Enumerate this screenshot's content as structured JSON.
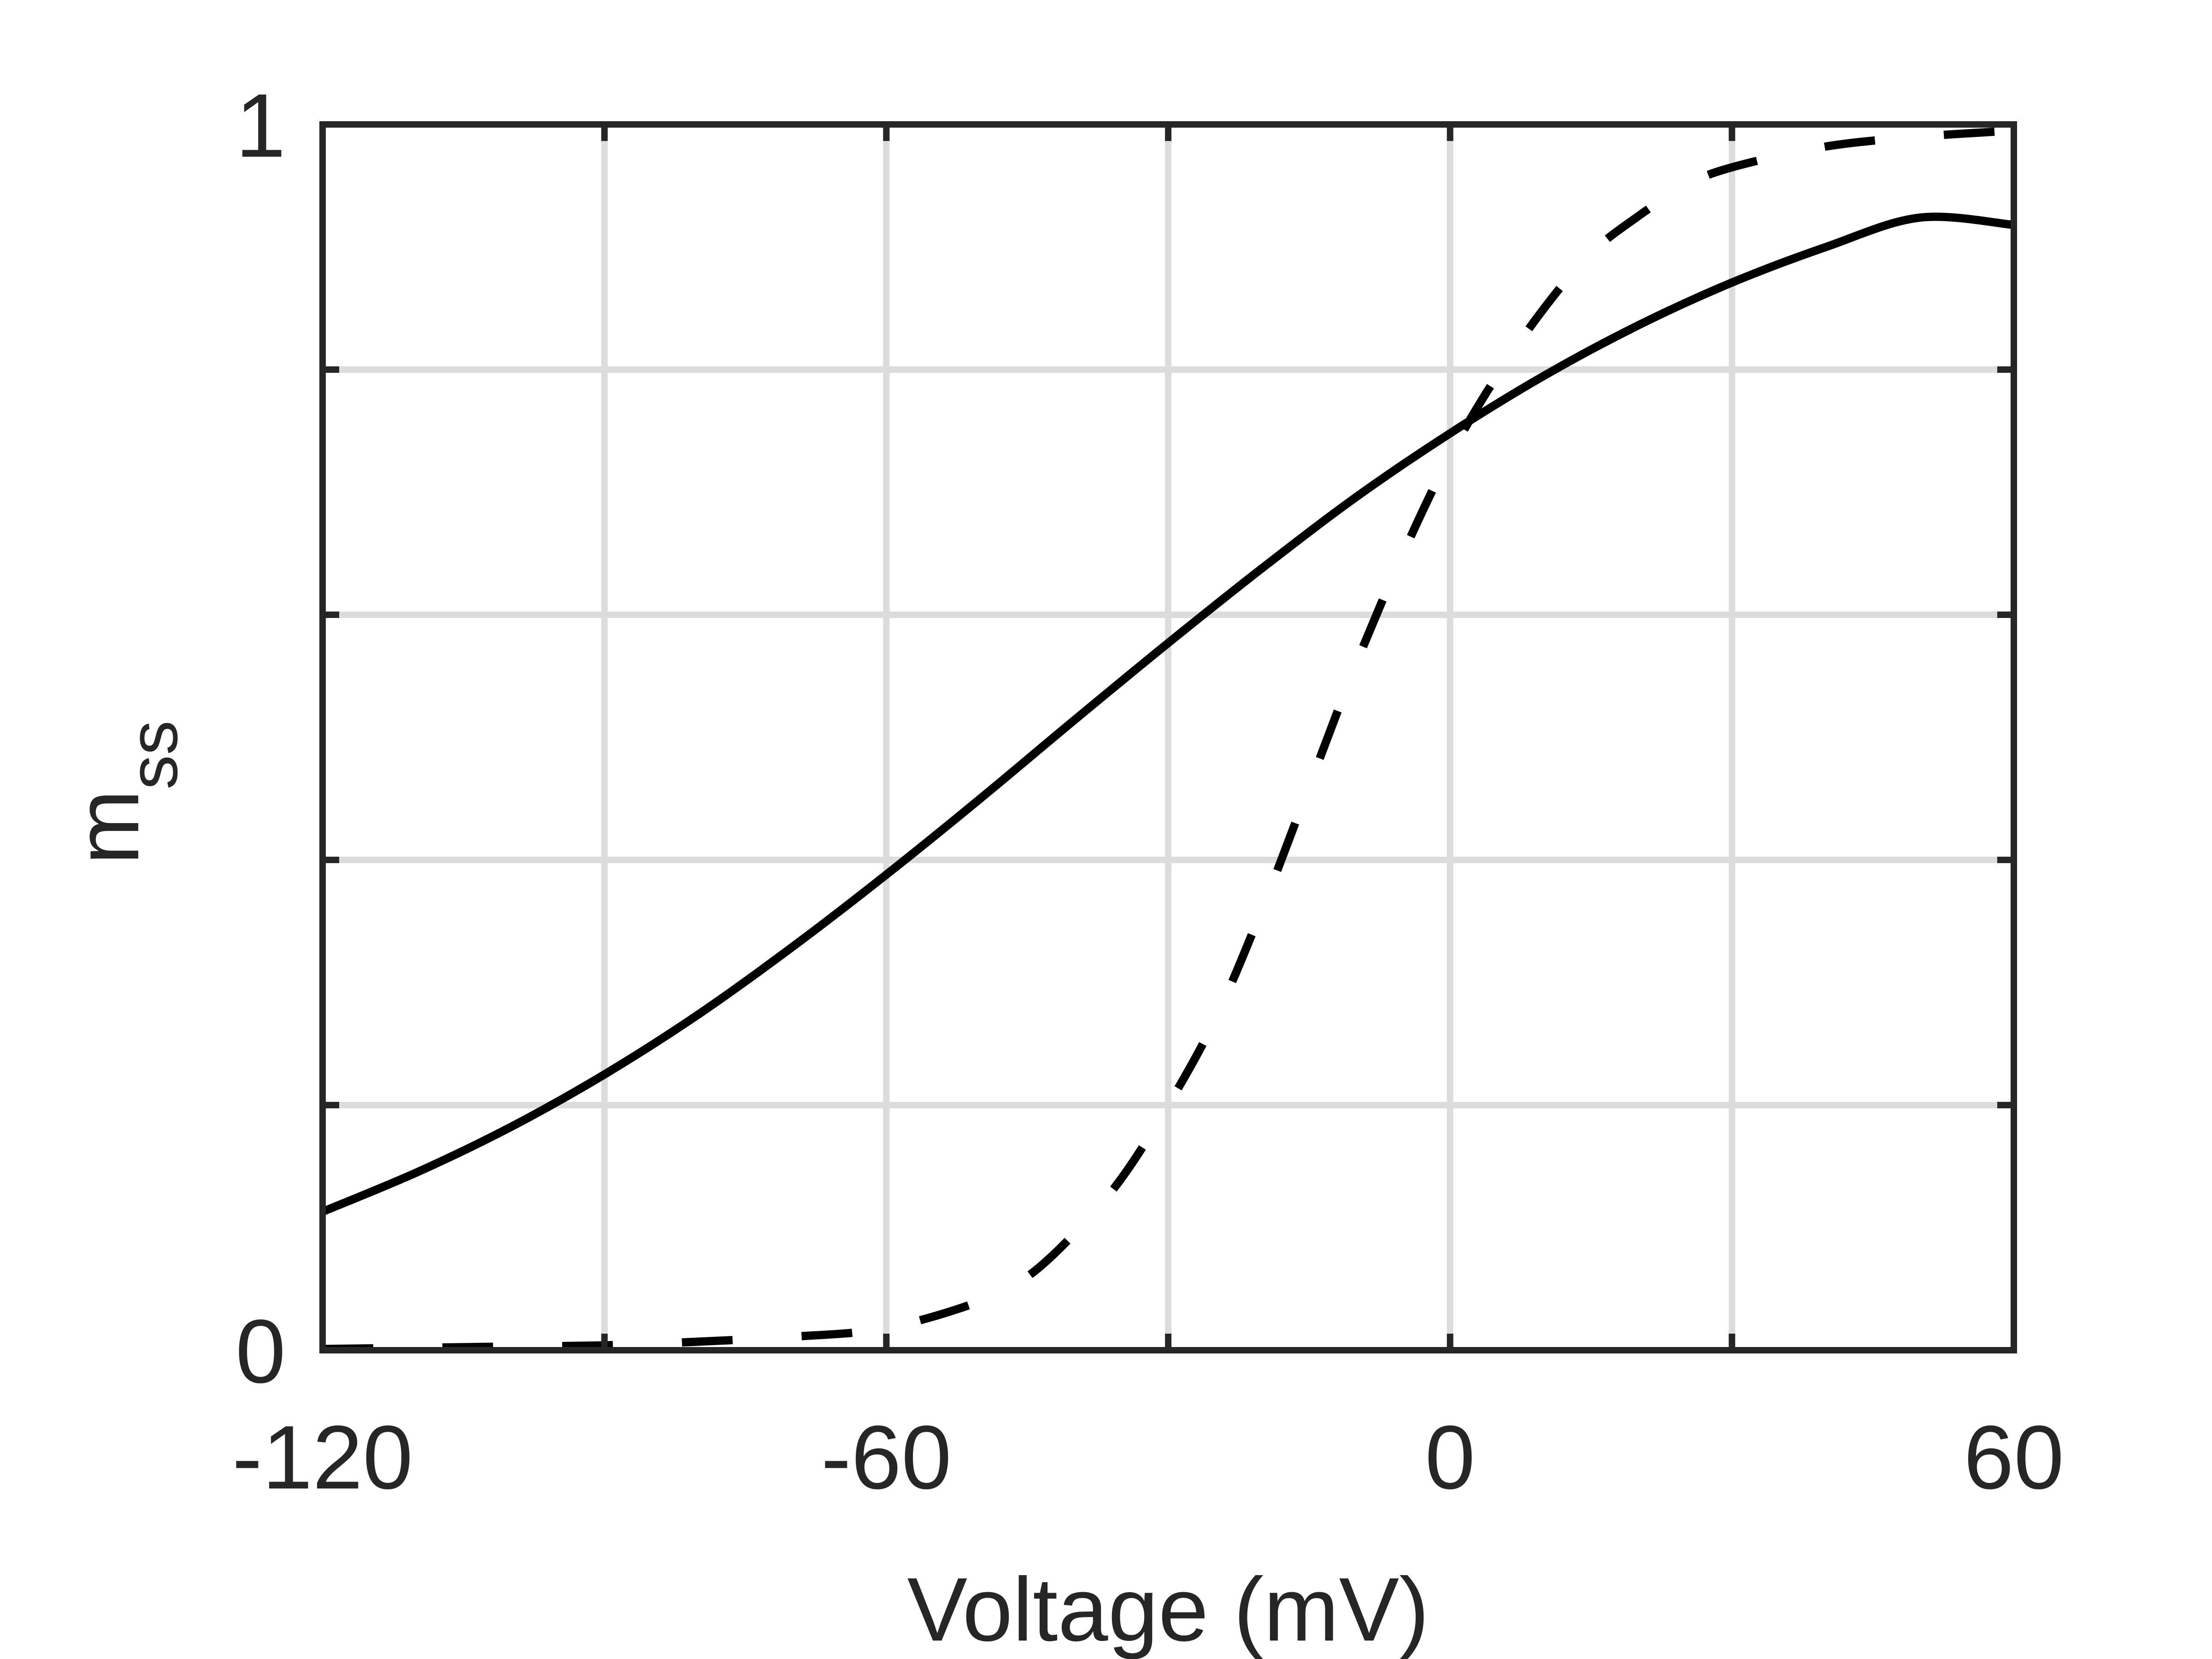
{
  "chart_data": {
    "type": "line",
    "title": "",
    "xlabel": "Voltage (mV)",
    "ylabel_main": "m",
    "ylabel_sub": "ss",
    "xlim": [
      -120,
      60
    ],
    "ylim": [
      0,
      1
    ],
    "xticks": [
      -120,
      -90,
      -60,
      -30,
      0,
      30,
      60
    ],
    "xtick_labels": [
      {
        "value": -120,
        "label": "-120"
      },
      {
        "value": -60,
        "label": "-60"
      },
      {
        "value": 0,
        "label": "0"
      },
      {
        "value": 60,
        "label": "60"
      }
    ],
    "yticks": [
      0,
      0.2,
      0.4,
      0.6,
      0.8,
      1
    ],
    "ytick_labels": [
      {
        "value": 0,
        "label": "0"
      },
      {
        "value": 1,
        "label": "1"
      }
    ],
    "grid": true,
    "series": [
      {
        "style": "solid",
        "color": "#000000",
        "x": [
          -120,
          -110,
          -100,
          -90,
          -80,
          -70,
          -60,
          -50,
          -40,
          -30,
          -20,
          -10,
          0,
          10,
          20,
          30,
          40,
          50,
          60
        ],
        "y": [
          0.113,
          0.145,
          0.182,
          0.225,
          0.274,
          0.329,
          0.388,
          0.45,
          0.514,
          0.577,
          0.638,
          0.696,
          0.748,
          0.795,
          0.836,
          0.871,
          0.9,
          0.924,
          0.918
        ]
      },
      {
        "style": "dashed",
        "color": "#000000",
        "x": [
          -120,
          -110,
          -100,
          -90,
          -80,
          -70,
          -60,
          -50,
          -45,
          -40,
          -35,
          -30,
          -25,
          -20,
          -15,
          -10,
          -5,
          0,
          5,
          10,
          15,
          20,
          25,
          30,
          40,
          50,
          60
        ],
        "y": [
          0.001,
          0.002,
          0.003,
          0.004,
          0.007,
          0.011,
          0.018,
          0.04,
          0.06,
          0.095,
          0.14,
          0.2,
          0.27,
          0.36,
          0.46,
          0.56,
          0.65,
          0.73,
          0.795,
          0.85,
          0.895,
          0.925,
          0.95,
          0.965,
          0.982,
          0.99,
          0.995
        ]
      }
    ]
  }
}
